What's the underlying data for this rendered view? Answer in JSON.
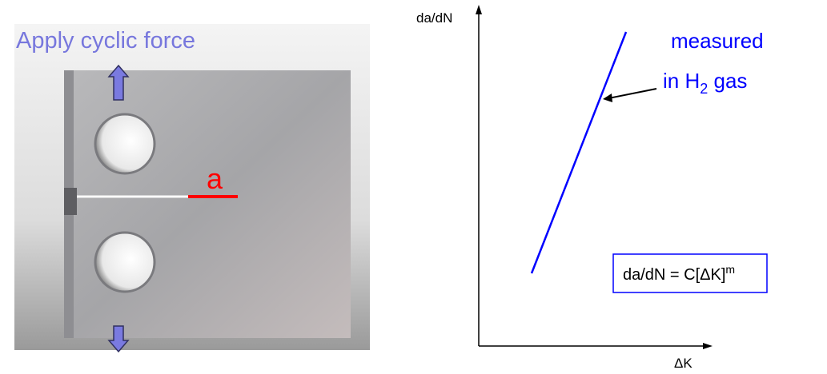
{
  "photo": {
    "caption": "Apply cyclic force",
    "crack_label": "a"
  },
  "plot": {
    "y_label": "da/dN",
    "x_label": "ΔK",
    "annotation": {
      "line1": "measured",
      "line2_pre": "in H",
      "line2_sub": "2",
      "line2_post": " gas"
    },
    "equation": {
      "base": "da/dN = C[ΔK]",
      "exponent": "m"
    }
  }
}
